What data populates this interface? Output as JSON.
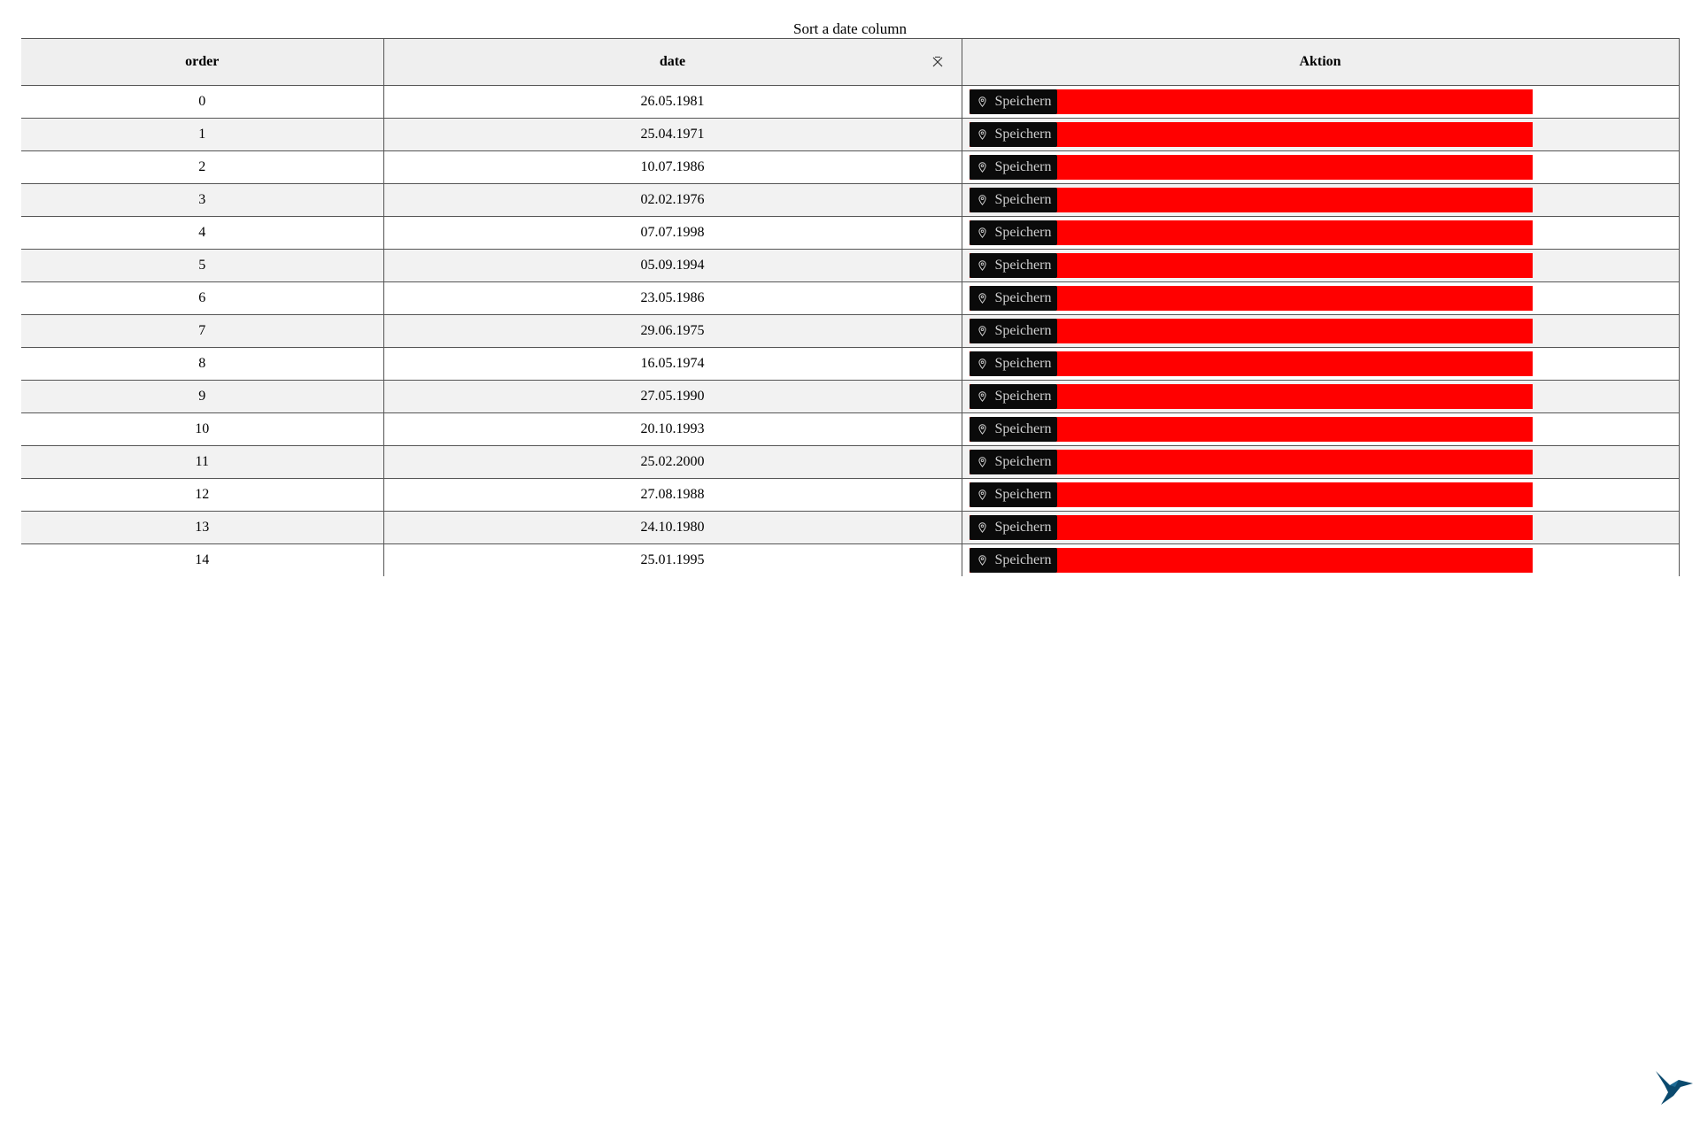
{
  "caption": "Sort a date column",
  "columns": {
    "order": "order",
    "date": "date",
    "action": "Aktion"
  },
  "icons": {
    "sort_clear": "close-icon",
    "button_icon": "map-pin-icon",
    "logo": "bird-logo"
  },
  "colors": {
    "header_bg": "#efefef",
    "stripe_bg": "#f2f2f2",
    "action_bar": "#ff0000",
    "button_bg": "#0a0a0a",
    "button_text": "#cfcfcf",
    "logo": "#0b4a6e"
  },
  "rows": [
    {
      "order": "0",
      "date": "26.05.1981",
      "action": "Speichern"
    },
    {
      "order": "1",
      "date": "25.04.1971",
      "action": "Speichern"
    },
    {
      "order": "2",
      "date": "10.07.1986",
      "action": "Speichern"
    },
    {
      "order": "3",
      "date": "02.02.1976",
      "action": "Speichern"
    },
    {
      "order": "4",
      "date": "07.07.1998",
      "action": "Speichern"
    },
    {
      "order": "5",
      "date": "05.09.1994",
      "action": "Speichern"
    },
    {
      "order": "6",
      "date": "23.05.1986",
      "action": "Speichern"
    },
    {
      "order": "7",
      "date": "29.06.1975",
      "action": "Speichern"
    },
    {
      "order": "8",
      "date": "16.05.1974",
      "action": "Speichern"
    },
    {
      "order": "9",
      "date": "27.05.1990",
      "action": "Speichern"
    },
    {
      "order": "10",
      "date": "20.10.1993",
      "action": "Speichern"
    },
    {
      "order": "11",
      "date": "25.02.2000",
      "action": "Speichern"
    },
    {
      "order": "12",
      "date": "27.08.1988",
      "action": "Speichern"
    },
    {
      "order": "13",
      "date": "24.10.1980",
      "action": "Speichern"
    },
    {
      "order": "14",
      "date": "25.01.1995",
      "action": "Speichern"
    }
  ]
}
